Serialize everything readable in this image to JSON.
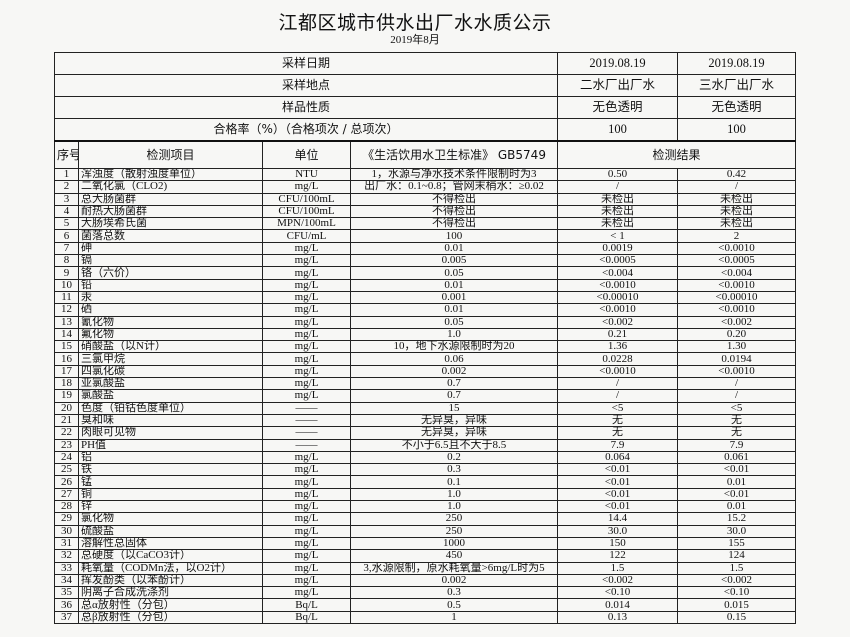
{
  "title": "江都区城市供水出厂水水质公示",
  "subtitle": "2019年8月",
  "summary": [
    {
      "label": "采样日期",
      "v1": "2019.08.19",
      "v2": "2019.08.19"
    },
    {
      "label": "采样地点",
      "v1": "二水厂出厂水",
      "v2": "三水厂出厂水"
    },
    {
      "label": "样品性质",
      "v1": "无色透明",
      "v2": "无色透明"
    },
    {
      "label": "合格率（%）（合格项次 / 总项次）",
      "v1": "100",
      "v2": "100"
    }
  ],
  "headers": {
    "no": "序号",
    "item": "检测项目",
    "unit": "单位",
    "standard": "《生活饮用水卫生标准》 GB5749",
    "result": "检测结果"
  },
  "rows": [
    [
      "1",
      "浑浊度（散射浊度单位）",
      "NTU",
      "1，水源与净水技术条件限制时为3",
      "0.50",
      "0.42"
    ],
    [
      "2",
      "二氧化氯（CLO2)",
      "mg/L",
      "出厂水：0.1~0.8；管网末梢水：≥0.02",
      "/",
      "/"
    ],
    [
      "3",
      "总大肠菌群",
      "CFU/100mL",
      "不得检出",
      "未检出",
      "未检出"
    ],
    [
      "4",
      "耐热大肠菌群",
      "CFU/100mL",
      "不得检出",
      "未检出",
      "未检出"
    ],
    [
      "5",
      "大肠埃希氏菌",
      "MPN/100mL",
      "不得检出",
      "未检出",
      "未检出"
    ],
    [
      "6",
      "菌落总数",
      "CFU/mL",
      "100",
      "< 1",
      "2"
    ],
    [
      "7",
      "砷",
      "mg/L",
      "0.01",
      "0.0019",
      "<0.0010"
    ],
    [
      "8",
      "镉",
      "mg/L",
      "0.005",
      "<0.0005",
      "<0.0005"
    ],
    [
      "9",
      "铬（六价）",
      "mg/L",
      "0.05",
      "<0.004",
      "<0.004"
    ],
    [
      "10",
      "铅",
      "mg/L",
      "0.01",
      "<0.0010",
      "<0.0010"
    ],
    [
      "11",
      "汞",
      "mg/L",
      "0.001",
      "<0.00010",
      "<0.00010"
    ],
    [
      "12",
      "硒",
      "mg/L",
      "0.01",
      "<0.0010",
      "<0.0010"
    ],
    [
      "13",
      "氰化物",
      "mg/L",
      "0.05",
      "<0.002",
      "<0.002"
    ],
    [
      "14",
      "氟化物",
      "mg/L",
      "1.0",
      "0.21",
      "0.20"
    ],
    [
      "15",
      "硝酸盐（以N计）",
      "mg/L",
      "10，地下水源限制时为20",
      "1.36",
      "1.30"
    ],
    [
      "16",
      "三氯甲烷",
      "mg/L",
      "0.06",
      "0.0228",
      "0.0194"
    ],
    [
      "17",
      "四氯化碳",
      "mg/L",
      "0.002",
      "<0.0010",
      "<0.0010"
    ],
    [
      "18",
      "亚氯酸盐",
      "mg/L",
      "0.7",
      "/",
      "/"
    ],
    [
      "19",
      "氯酸盐",
      "mg/L",
      "0.7",
      "/",
      "/"
    ],
    [
      "20",
      "色度（铂钴色度单位）",
      "——",
      "15",
      "<5",
      "<5"
    ],
    [
      "21",
      "臭和味",
      "——",
      "无异臭，异味",
      "无",
      "无"
    ],
    [
      "22",
      "肉眼可见物",
      "——",
      "无异臭，异味",
      "无",
      "无"
    ],
    [
      "23",
      "PH值",
      "——",
      "不小于6.5且不大于8.5",
      "7.9",
      "7.9"
    ],
    [
      "24",
      "铝",
      "mg/L",
      "0.2",
      "0.064",
      "0.061"
    ],
    [
      "25",
      "铁",
      "mg/L",
      "0.3",
      "<0.01",
      "<0.01"
    ],
    [
      "26",
      "锰",
      "mg/L",
      "0.1",
      "<0.01",
      "0.01"
    ],
    [
      "27",
      "铜",
      "mg/L",
      "1.0",
      "<0.01",
      "<0.01"
    ],
    [
      "28",
      "锌",
      "mg/L",
      "1.0",
      "<0.01",
      "0.01"
    ],
    [
      "29",
      "氯化物",
      "mg/L",
      "250",
      "14.4",
      "15.2"
    ],
    [
      "30",
      "硫酸盐",
      "mg/L",
      "250",
      "30.0",
      "30.0"
    ],
    [
      "31",
      "溶解性总固体",
      "mg/L",
      "1000",
      "150",
      "155"
    ],
    [
      "32",
      "总硬度（以CaCO3计）",
      "mg/L",
      "450",
      "122",
      "124"
    ],
    [
      "33",
      "耗氧量（CODMn法，以O2计）",
      "mg/L",
      "3,水源限制，原水耗氧量>6mg/L时为5",
      "1.5",
      "1.5"
    ],
    [
      "34",
      "挥发酚类（以苯酚计）",
      "mg/L",
      "0.002",
      "<0.002",
      "<0.002"
    ],
    [
      "35",
      "阴离子合成洗涤剂",
      "mg/L",
      "0.3",
      "<0.10",
      "<0.10"
    ],
    [
      "36",
      "总α放射性（分包）",
      "Bq/L",
      "0.5",
      "0.014",
      "0.015"
    ],
    [
      "37",
      "总β放射性（分包）",
      "Bq/L",
      "1",
      "0.13",
      "0.15"
    ]
  ]
}
